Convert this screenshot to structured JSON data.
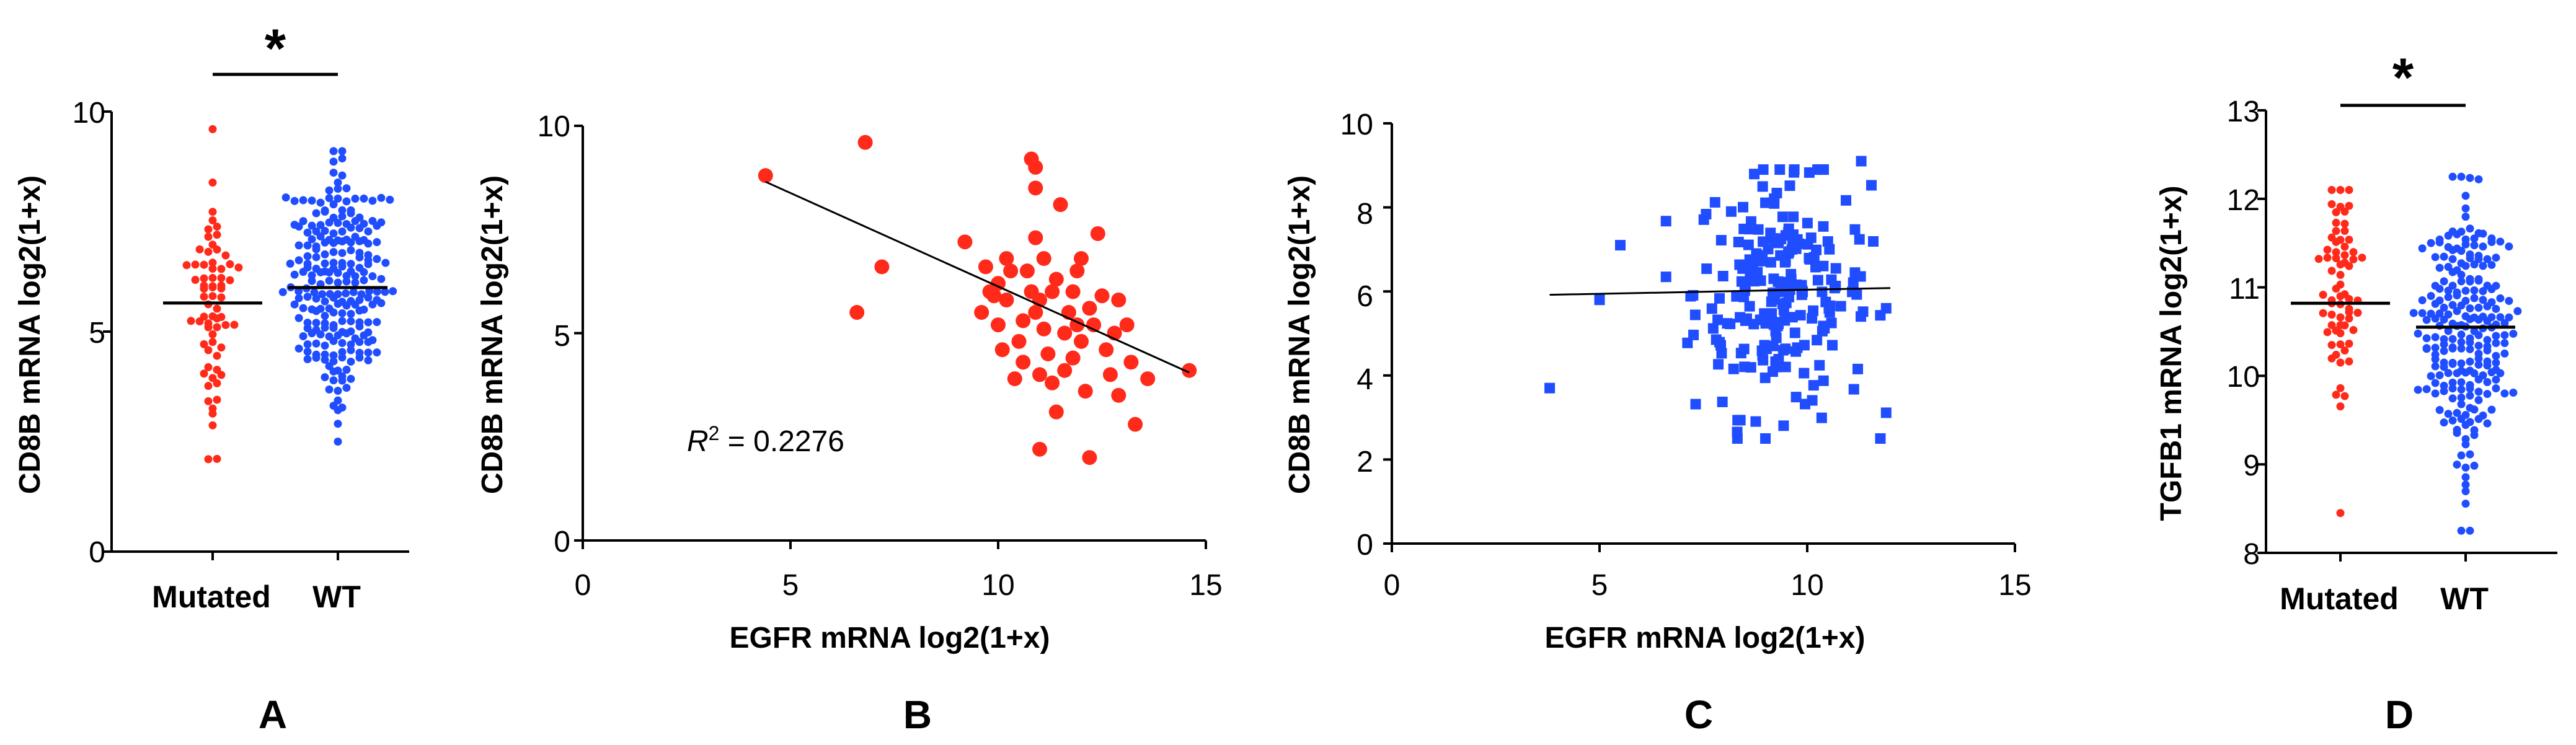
{
  "chart_data": [
    {
      "panel": "A",
      "type": "scatter",
      "ylabel": "CD8B mRNA log2(1+x)",
      "ylim": [
        0,
        10
      ],
      "yticks": [
        "0",
        "5",
        "10"
      ],
      "categories": [
        "Mutated",
        "WT"
      ],
      "colors": [
        "#ff2a1a",
        "#1f4dff"
      ],
      "medians": [
        5.65,
        6.0
      ],
      "n": [
        68,
        230
      ],
      "ranges": [
        [
          2.1,
          9.6
        ],
        [
          2.5,
          9.1
        ]
      ],
      "significance": "*"
    },
    {
      "panel": "B",
      "type": "scatter",
      "xlabel": "EGFR mRNA log2(1+x)",
      "ylabel": "CD8B mRNA log2(1+x)",
      "xlim": [
        0,
        15
      ],
      "ylim": [
        0,
        10
      ],
      "xticks": [
        "0",
        "5",
        "10",
        "15"
      ],
      "yticks": [
        "0",
        "5",
        "10"
      ],
      "color": "#ff2a1a",
      "annotation": {
        "r_label": "R",
        "r_sup": "2",
        "r_value": " = 0.2276"
      },
      "fit_line": {
        "x": [
          4.4,
          14.6
        ],
        "y": [
          8.65,
          4.05
        ]
      },
      "points": [
        [
          4.4,
          8.8
        ],
        [
          6.8,
          9.6
        ],
        [
          6.6,
          5.5
        ],
        [
          7.2,
          6.6
        ],
        [
          9.2,
          7.2
        ],
        [
          9.7,
          6.6
        ],
        [
          9.8,
          6.0
        ],
        [
          9.9,
          5.9
        ],
        [
          10.0,
          6.2
        ],
        [
          10.2,
          5.8
        ],
        [
          10.3,
          6.5
        ],
        [
          10.0,
          5.2
        ],
        [
          10.5,
          4.8
        ],
        [
          10.8,
          9.2
        ],
        [
          10.9,
          9.0
        ],
        [
          10.9,
          8.5
        ],
        [
          10.7,
          6.5
        ],
        [
          10.8,
          6.0
        ],
        [
          10.9,
          5.5
        ],
        [
          11.0,
          5.8
        ],
        [
          11.1,
          6.8
        ],
        [
          11.2,
          4.5
        ],
        [
          11.0,
          4.0
        ],
        [
          11.3,
          3.8
        ],
        [
          11.5,
          8.1
        ],
        [
          11.0,
          2.2
        ],
        [
          11.4,
          3.1
        ],
        [
          11.6,
          5.0
        ],
        [
          11.7,
          5.5
        ],
        [
          11.8,
          6.0
        ],
        [
          11.9,
          6.5
        ],
        [
          12.0,
          6.8
        ],
        [
          11.8,
          4.4
        ],
        [
          12.0,
          4.8
        ],
        [
          12.2,
          5.6
        ],
        [
          12.3,
          5.2
        ],
        [
          12.5,
          5.9
        ],
        [
          12.4,
          7.4
        ],
        [
          12.6,
          4.6
        ],
        [
          12.8,
          5.0
        ],
        [
          12.2,
          2.0
        ],
        [
          12.9,
          3.5
        ],
        [
          13.1,
          5.2
        ],
        [
          13.3,
          2.8
        ],
        [
          13.6,
          3.9
        ],
        [
          14.6,
          4.1
        ],
        [
          10.1,
          4.6
        ],
        [
          10.4,
          3.9
        ],
        [
          10.6,
          4.3
        ],
        [
          11.3,
          6.0
        ],
        [
          11.6,
          4.1
        ],
        [
          12.1,
          3.6
        ],
        [
          12.7,
          4.0
        ],
        [
          10.2,
          6.8
        ],
        [
          11.1,
          5.1
        ],
        [
          12.9,
          5.8
        ],
        [
          13.2,
          4.3
        ],
        [
          10.9,
          7.3
        ],
        [
          11.4,
          6.3
        ],
        [
          9.6,
          5.5
        ],
        [
          10.6,
          5.3
        ],
        [
          11.9,
          5.2
        ]
      ]
    },
    {
      "panel": "C",
      "type": "scatter",
      "xlabel": "EGFR mRNA log2(1+x)",
      "ylabel": "CD8B mRNA log2(1+x)",
      "xlim": [
        0,
        15
      ],
      "ylim": [
        0,
        10
      ],
      "xticks": [
        "0",
        "5",
        "10",
        "15"
      ],
      "yticks": [
        "0",
        "2",
        "4",
        "6",
        "8",
        "10"
      ],
      "color": "#1f4dff",
      "marker": "square",
      "n": 230,
      "x_range": [
        3.8,
        12.0
      ],
      "y_range": [
        2.5,
        9.1
      ],
      "fit_line": {
        "x": [
          3.8,
          12.0
        ],
        "y": [
          5.92,
          6.08
        ]
      },
      "outliers": [
        [
          3.8,
          3.7
        ],
        [
          5.0,
          5.8
        ],
        [
          5.5,
          7.1
        ],
        [
          11.3,
          9.1
        ]
      ]
    },
    {
      "panel": "D",
      "type": "scatter",
      "ylabel": "TGFB1 mRNA log2(1+x)",
      "ylim": [
        8,
        13
      ],
      "yticks": [
        "8",
        "9",
        "10",
        "11",
        "12",
        "13"
      ],
      "categories": [
        "Mutated",
        "WT"
      ],
      "colors": [
        "#ff2a1a",
        "#1f4dff"
      ],
      "medians": [
        10.82,
        10.55
      ],
      "n": [
        68,
        230
      ],
      "ranges": [
        [
          8.45,
          12.1
        ],
        [
          8.25,
          12.25
        ]
      ],
      "significance": "*"
    }
  ],
  "panel_labels": [
    "A",
    "B",
    "C",
    "D"
  ]
}
